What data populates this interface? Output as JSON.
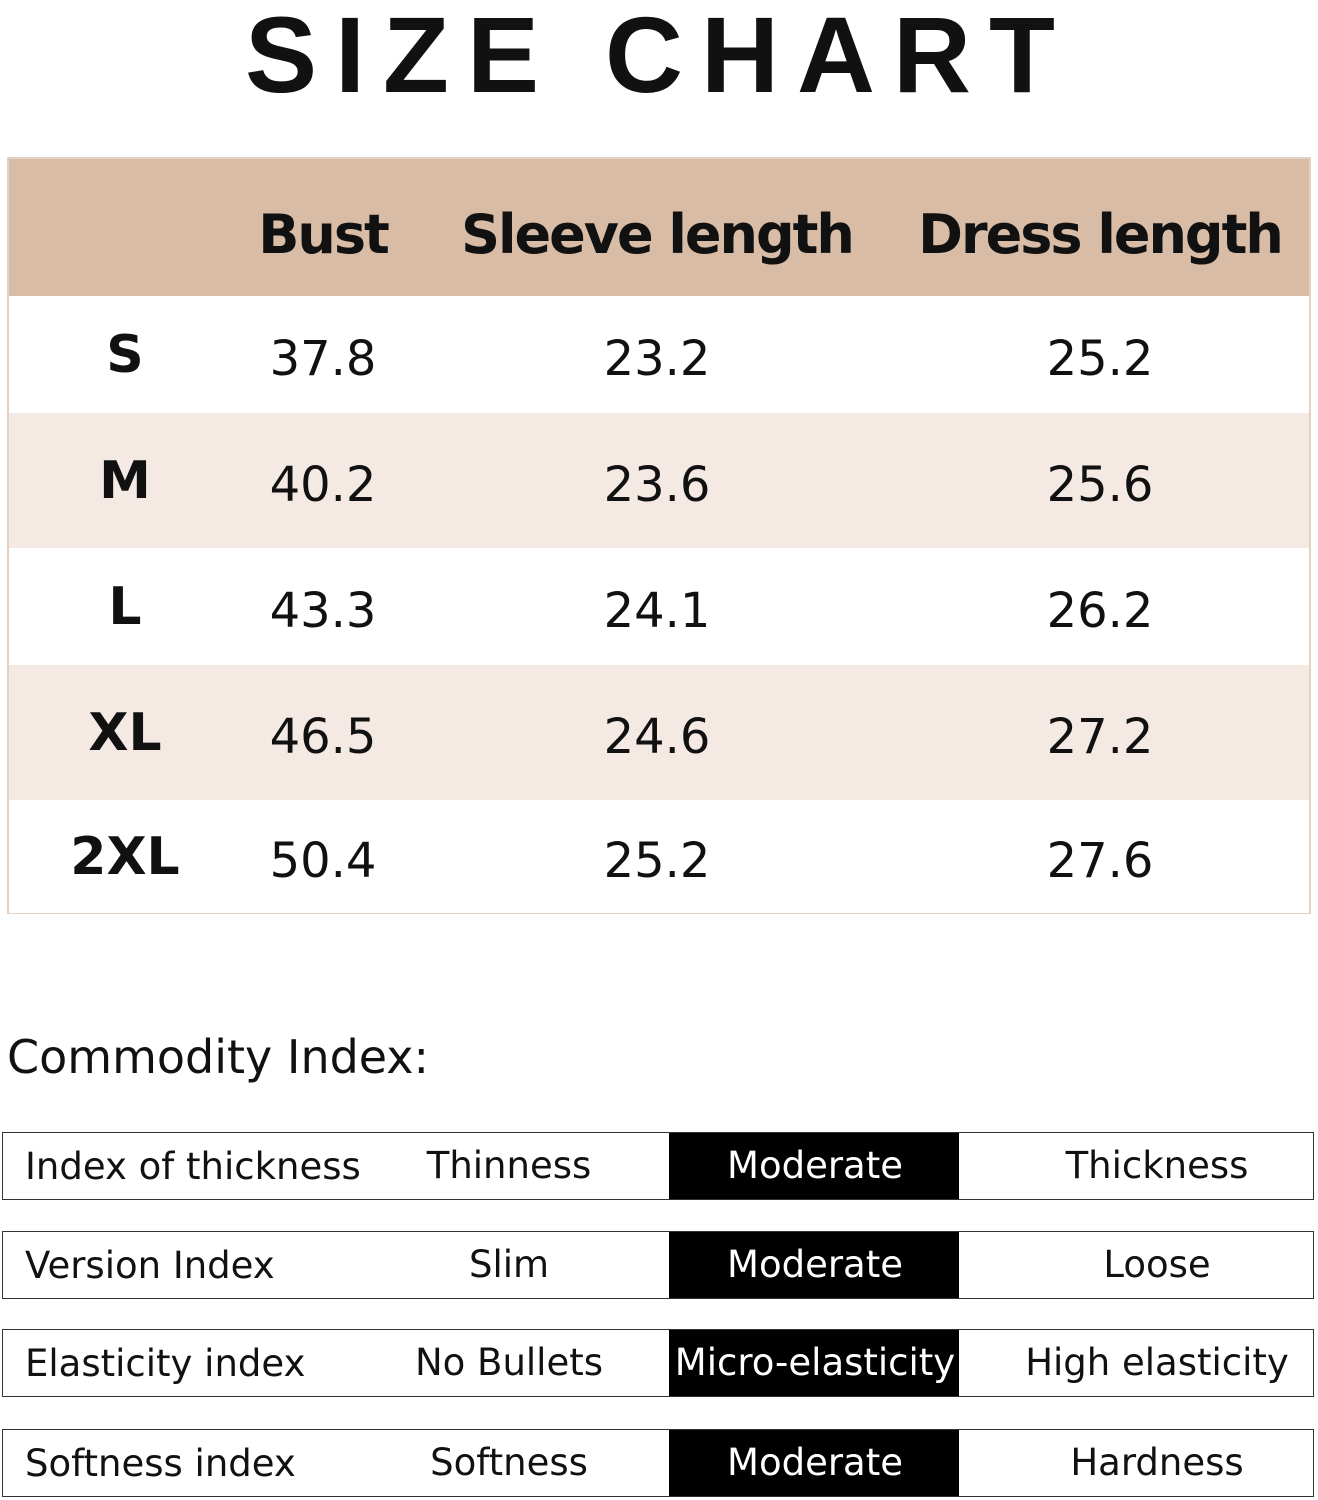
{
  "title": "SIZE CHART",
  "size_table": {
    "headers": [
      "Bust",
      "Sleeve length",
      "Dress length"
    ],
    "rows": [
      {
        "size": "S",
        "values": [
          37.8,
          23.2,
          25.2
        ]
      },
      {
        "size": "M",
        "values": [
          40.2,
          23.6,
          25.6
        ]
      },
      {
        "size": "L",
        "values": [
          43.3,
          24.1,
          26.2
        ]
      },
      {
        "size": "XL",
        "values": [
          46.5,
          24.6,
          27.2
        ]
      },
      {
        "size": "2XL",
        "values": [
          50.4,
          25.2,
          27.6
        ]
      }
    ]
  },
  "commodity_index": {
    "title": "Commodity Index:",
    "rows": [
      {
        "label": "Index of thickness",
        "options": [
          "Thinness",
          "Moderate",
          "Thickness"
        ],
        "selected": 1
      },
      {
        "label": "Version Index",
        "options": [
          "Slim",
          "Moderate",
          "Loose"
        ],
        "selected": 1
      },
      {
        "label": "Elasticity index",
        "options": [
          "No Bullets",
          "Micro-elasticity",
          "High elasticity"
        ],
        "selected": 1
      },
      {
        "label": "Softness index",
        "options": [
          "Softness",
          "Moderate",
          "Hardness"
        ],
        "selected": 1
      }
    ]
  }
}
